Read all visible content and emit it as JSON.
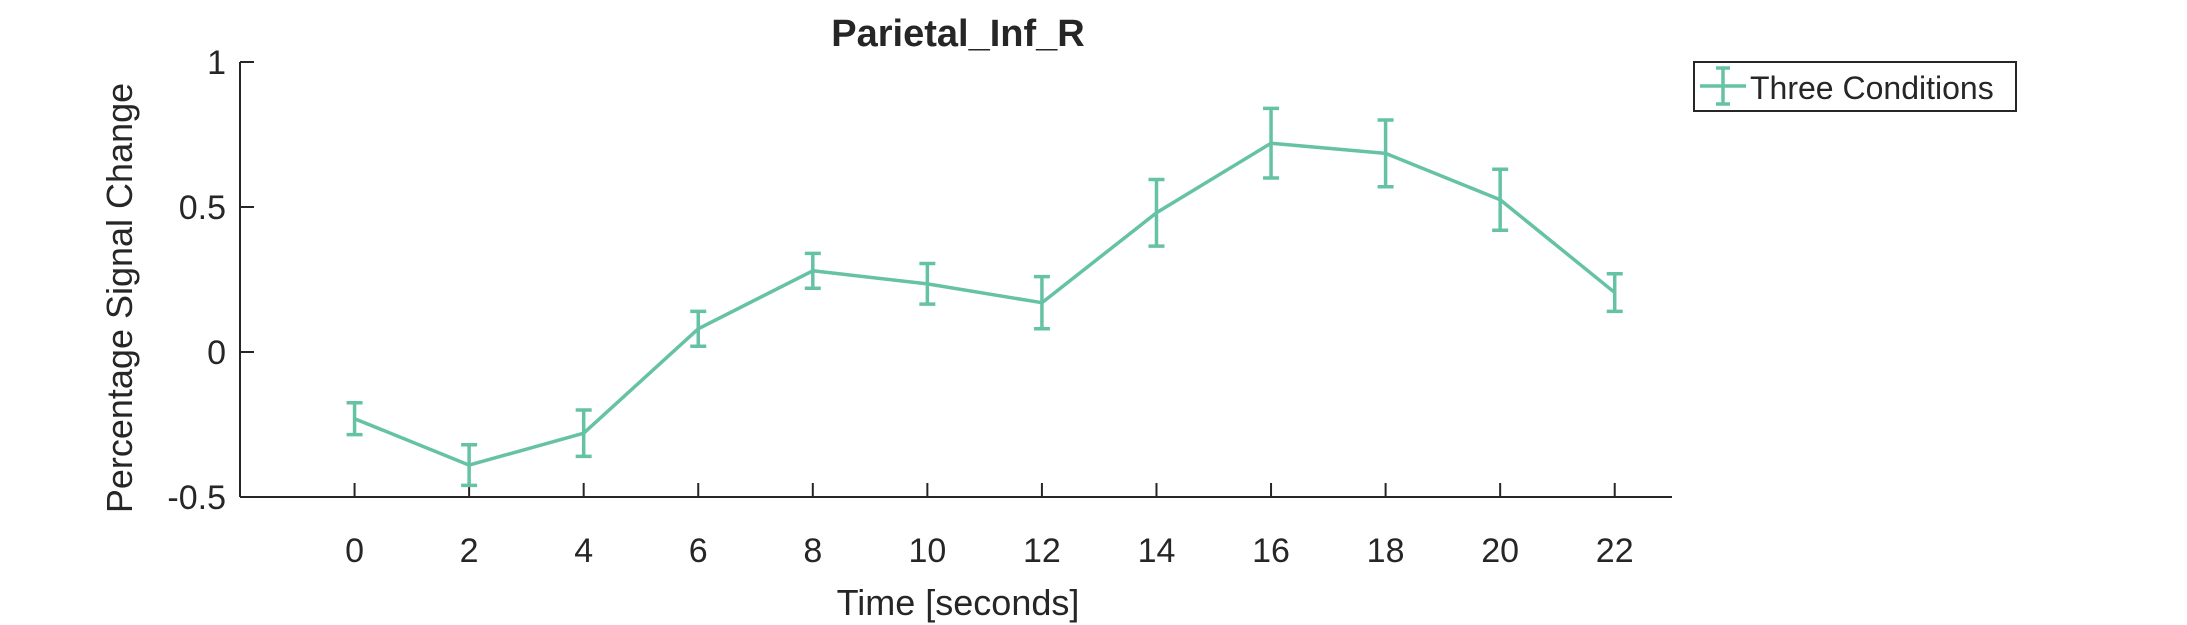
{
  "chart_data": {
    "type": "line",
    "title": "Parietal_Inf_R",
    "xlabel": "Time [seconds]",
    "ylabel": "Percentage Signal Change",
    "xlim": [
      -2,
      23
    ],
    "ylim": [
      -0.5,
      1
    ],
    "xticks": [
      0,
      2,
      4,
      6,
      8,
      10,
      12,
      14,
      16,
      18,
      20,
      22
    ],
    "yticks": [
      -0.5,
      0,
      0.5,
      1
    ],
    "ytick_labels": [
      "-0.5",
      "0",
      "0.5",
      "1"
    ],
    "grid": false,
    "legend_position": "outside-top-right",
    "series": [
      {
        "name": "Three Conditions",
        "color": "#66c2a5",
        "x": [
          0,
          2,
          4,
          6,
          8,
          10,
          12,
          14,
          16,
          18,
          20,
          22
        ],
        "y": [
          -0.23,
          -0.39,
          -0.28,
          0.08,
          0.28,
          0.235,
          0.17,
          0.48,
          0.72,
          0.685,
          0.525,
          0.205
        ],
        "err": [
          0.055,
          0.07,
          0.08,
          0.06,
          0.06,
          0.07,
          0.09,
          0.115,
          0.12,
          0.115,
          0.105,
          0.065
        ]
      }
    ]
  }
}
